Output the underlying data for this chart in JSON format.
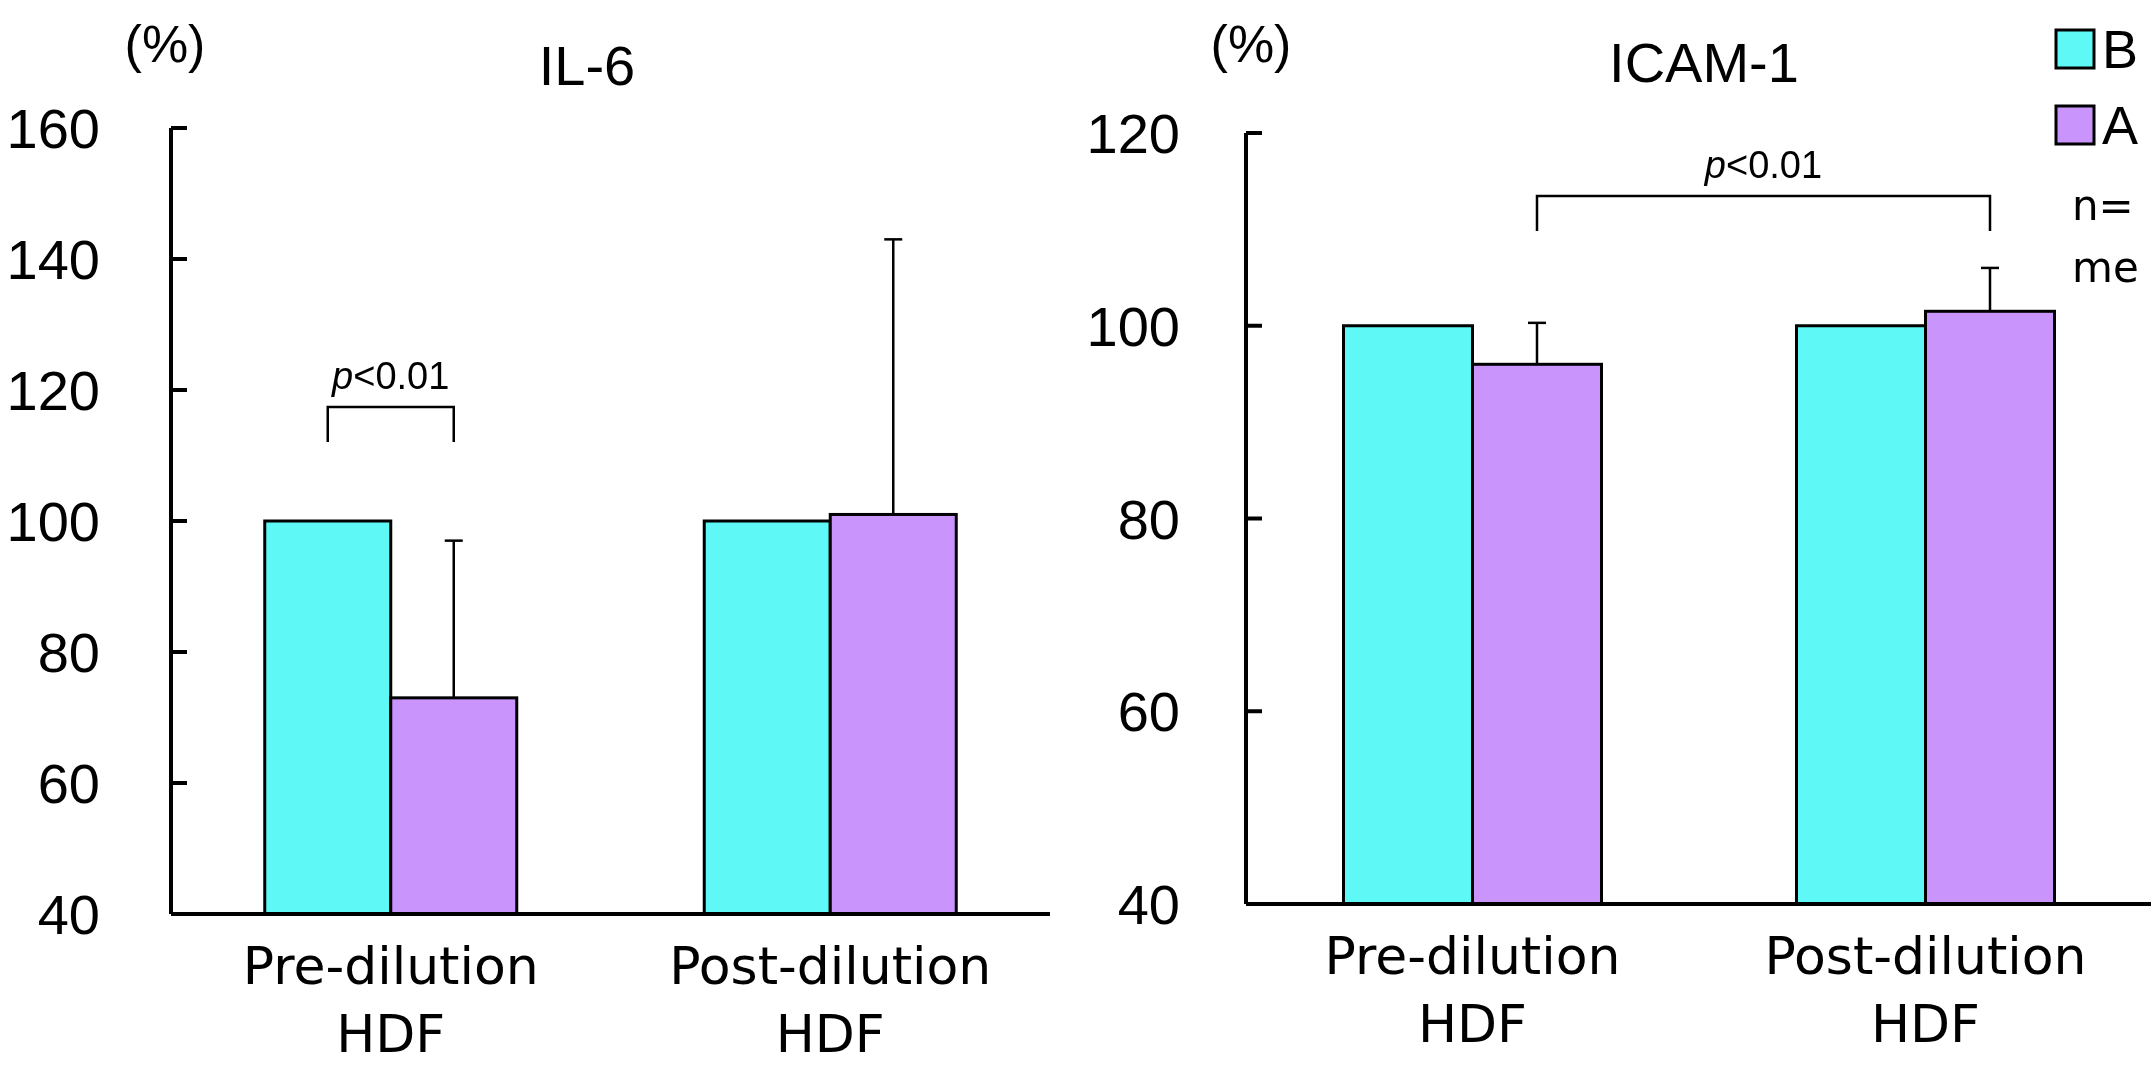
{
  "chart_data": [
    {
      "type": "bar",
      "title": "IL-6",
      "ylabel": "(%)",
      "categories": [
        "Pre-dilution\nHDF",
        "Post-dilution\nHDF"
      ],
      "series": [
        {
          "color": "#5ef8f6",
          "values": [
            100,
            100
          ]
        },
        {
          "color": "#c994fb",
          "values": [
            73,
            101
          ],
          "errors": [
            [
              73,
              97
            ],
            [
              101,
              143
            ]
          ]
        }
      ],
      "ylim": [
        40,
        160
      ],
      "yticks": [
        40,
        60,
        80,
        100,
        120,
        140,
        160
      ],
      "grid": false,
      "annotations": [
        "p<0.01"
      ]
    },
    {
      "type": "bar",
      "title": "ICAM-1",
      "ylabel": "(%)",
      "categories": [
        "Pre-dilution\nHDF",
        "Post-dilution\nHDF"
      ],
      "series": [
        {
          "name": "B",
          "color": "#5ef8f6",
          "values": [
            100,
            100
          ]
        },
        {
          "name": "A",
          "color": "#c994fb",
          "values": [
            96,
            101.5
          ],
          "errors": [
            [
              96,
              100.3
            ],
            [
              101.5,
              106
            ]
          ]
        }
      ],
      "ylim": [
        40,
        120
      ],
      "yticks": [
        40,
        60,
        80,
        100,
        120
      ],
      "grid": false,
      "legend": "top right",
      "annotations": [
        "p<0.01",
        "n=",
        "me"
      ]
    }
  ]
}
